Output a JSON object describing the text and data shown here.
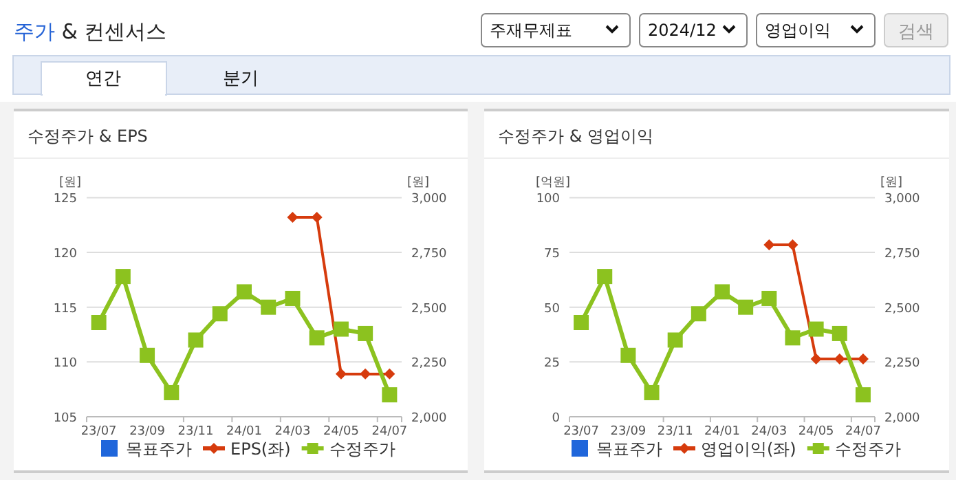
{
  "chart_data": [
    {
      "type": "other",
      "title": "주가 & 컨센서스",
      "annotations": [
        "주재무제표",
        "2024/12",
        "영업이익",
        "검색",
        "연간",
        "분기"
      ]
    },
    {
      "type": "line",
      "title": "수정주가 & EPS",
      "ylabel": "[원]",
      "y2label": "[원]",
      "categories": [
        "23/07",
        null,
        "23/09",
        null,
        "23/11",
        null,
        "24/01",
        null,
        "24/03",
        null,
        "24/05",
        null,
        "24/07"
      ],
      "ylim": [
        105,
        125
      ],
      "yticks": [
        105,
        110,
        115,
        120,
        125
      ],
      "y2lim": [
        2000,
        3000
      ],
      "y2ticks": [
        {
          "value": 2000,
          "label": "2,000"
        },
        {
          "value": 2250,
          "label": "2,250"
        },
        {
          "value": 2500,
          "label": "2,500"
        },
        {
          "value": 2750,
          "label": "2,750"
        },
        {
          "value": 3000,
          "label": "3,000"
        }
      ],
      "grid": "y",
      "legend": "bottom",
      "series": [
        {
          "name": "목표주가",
          "color": "#1f66db",
          "marker": "square",
          "axis": "y2",
          "values": [
            null,
            null,
            null,
            null,
            null,
            null,
            null,
            null,
            null,
            null,
            null,
            null,
            null
          ]
        },
        {
          "name": "EPS(좌)",
          "color": "#d63b0d",
          "marker": "diamond",
          "values": [
            null,
            null,
            null,
            null,
            null,
            null,
            null,
            null,
            123.2,
            123.2,
            108.9,
            108.9,
            108.9
          ]
        },
        {
          "name": "수정주가",
          "color": "#8cc21f",
          "marker": "square",
          "axis": "y2",
          "values": [
            2430,
            2640,
            2280,
            2110,
            2350,
            2470,
            2570,
            2500,
            2540,
            2360,
            2400,
            2380,
            2100
          ]
        }
      ]
    },
    {
      "type": "line",
      "title": "수정주가 & 영업이익",
      "ylabel": "[억원]",
      "y2label": "[원]",
      "categories": [
        "23/07",
        null,
        "23/09",
        null,
        "23/11",
        null,
        "24/01",
        null,
        "24/03",
        null,
        "24/05",
        null,
        "24/07"
      ],
      "ylim": [
        0,
        100
      ],
      "yticks": [
        0,
        25,
        50,
        75,
        100
      ],
      "y2lim": [
        2000,
        3000
      ],
      "y2ticks": [
        {
          "value": 2000,
          "label": "2,000"
        },
        {
          "value": 2250,
          "label": "2,250"
        },
        {
          "value": 2500,
          "label": "2,500"
        },
        {
          "value": 2750,
          "label": "2,750"
        },
        {
          "value": 3000,
          "label": "3,000"
        }
      ],
      "grid": "y",
      "legend": "bottom",
      "series": [
        {
          "name": "목표주가",
          "color": "#1f66db",
          "marker": "square",
          "axis": "y2",
          "values": [
            null,
            null,
            null,
            null,
            null,
            null,
            null,
            null,
            null,
            null,
            null,
            null,
            null
          ]
        },
        {
          "name": "영업이익(좌)",
          "color": "#d63b0d",
          "marker": "diamond",
          "values": [
            null,
            null,
            null,
            null,
            null,
            null,
            null,
            null,
            78.5,
            78.5,
            26.4,
            26.4,
            26.4
          ]
        },
        {
          "name": "수정주가",
          "color": "#8cc21f",
          "marker": "square",
          "axis": "y2",
          "values": [
            2430,
            2640,
            2280,
            2110,
            2350,
            2470,
            2570,
            2500,
            2540,
            2360,
            2400,
            2380,
            2100
          ]
        }
      ]
    }
  ]
}
